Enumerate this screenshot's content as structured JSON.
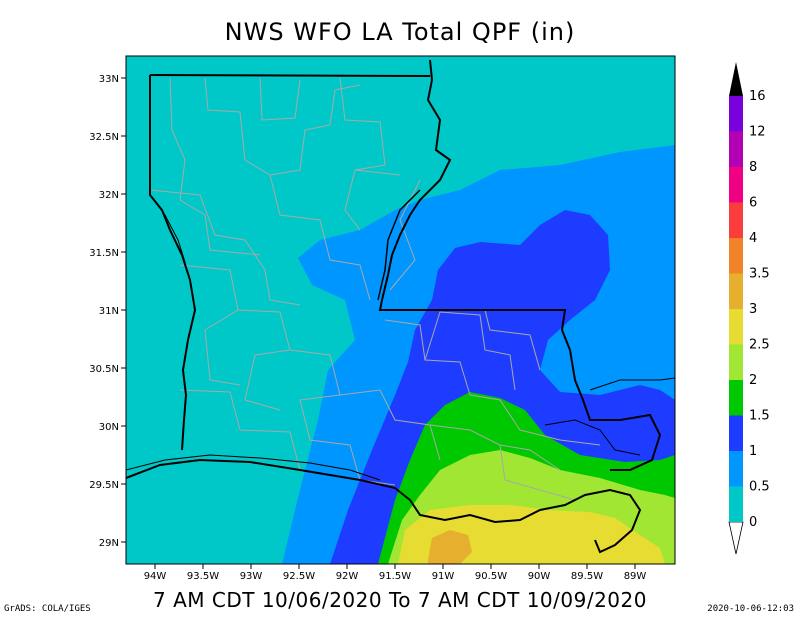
{
  "title": "NWS WFO LA Total QPF (in)",
  "subtitle": "7 AM CDT 10/06/2020 To 7 AM CDT 10/09/2020",
  "footer_left": "GrADS: COLA/IGES",
  "footer_right": "2020-10-06-12:03",
  "lat_labels": [
    "33N",
    "32.5N",
    "32N",
    "31.5N",
    "31N",
    "30.5N",
    "30N",
    "29.5N",
    "29N"
  ],
  "lon_labels": [
    "94W",
    "93.5W",
    "93W",
    "92.5W",
    "92W",
    "91.5W",
    "91W",
    "90.5W",
    "90W",
    "89.5W",
    "89W"
  ],
  "colorbar": {
    "labels": [
      "0",
      "0.5",
      "1",
      "1.5",
      "2",
      "2.5",
      "3",
      "3.5",
      "4",
      "6",
      "8",
      "12",
      "16"
    ],
    "colors": [
      "#00c8c8",
      "#0096ff",
      "#1e3cff",
      "#00c800",
      "#a0e632",
      "#e6dc32",
      "#e6af2d",
      "#f08228",
      "#fa3c3c",
      "#f00082",
      "#b400b4",
      "#7800dc",
      "#000000"
    ]
  }
}
